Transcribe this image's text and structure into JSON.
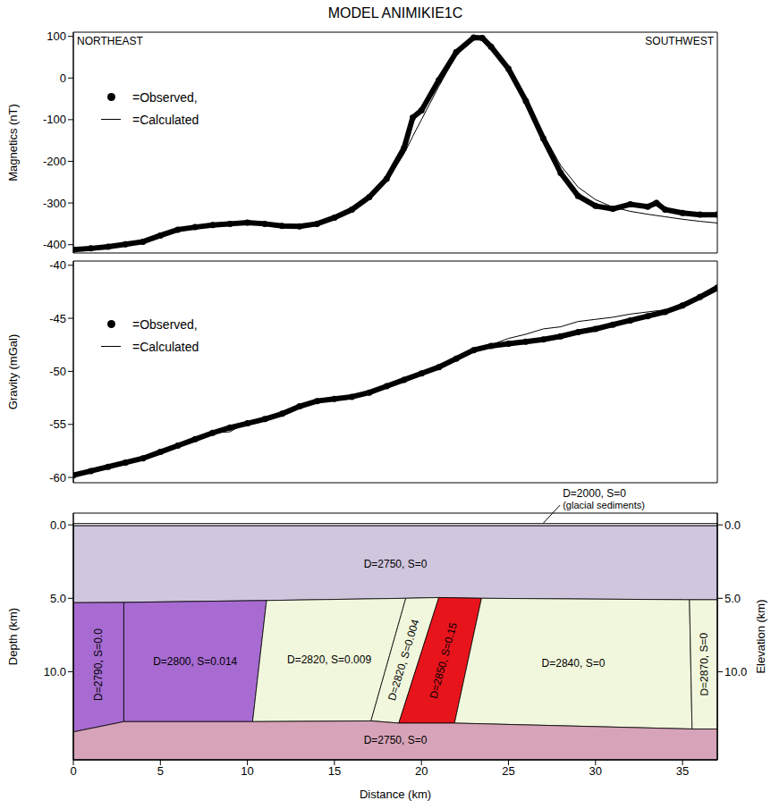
{
  "chart_data": [
    {
      "type": "line",
      "title": "MODEL ANIMIKIE1C",
      "annotations": [
        "NORTHEAST",
        "SOUTHWEST"
      ],
      "ylabel": "Magnetics (nT)",
      "x": [
        0,
        1,
        2,
        3,
        4,
        5,
        6,
        7,
        8,
        9,
        10,
        11,
        12,
        13,
        14,
        15,
        16,
        17,
        18,
        19,
        19.5,
        20,
        21,
        22,
        23,
        23.5,
        24,
        25,
        26,
        27,
        28,
        29,
        30,
        31,
        32,
        33,
        33.5,
        34,
        35,
        36,
        37
      ],
      "xlim": [
        0,
        37
      ],
      "ylim": [
        -420,
        110
      ],
      "yticks": [
        -400,
        -300,
        -200,
        -100,
        0,
        100
      ],
      "tick_labels": "y",
      "legend": "upper left",
      "series": [
        {
          "name": "=Observed,",
          "color": "#000000",
          "marker": "circle",
          "line_style": "solid",
          "values": [
            -412,
            -409,
            -405,
            -399,
            -393,
            -378,
            -364,
            -358,
            -353,
            -350,
            -347,
            -350,
            -355,
            -356,
            -350,
            -335,
            -316,
            -286,
            -242,
            -168,
            -95,
            -78,
            -5,
            62,
            97,
            96,
            75,
            22,
            -55,
            -145,
            -228,
            -283,
            -307,
            -314,
            -303,
            -309,
            -300,
            -316,
            -324,
            -328,
            -328
          ]
        },
        {
          "name": "=Calculated",
          "color": "#000000",
          "marker": "none",
          "line_style": "solid",
          "values": [
            -412,
            -409,
            -404,
            -398,
            -391,
            -378,
            -366,
            -359,
            -354,
            -350,
            -348,
            -349,
            -353,
            -355,
            -350,
            -336,
            -318,
            -290,
            -248,
            -182,
            -140,
            -100,
            -20,
            55,
            95,
            97,
            78,
            25,
            -50,
            -135,
            -210,
            -262,
            -292,
            -310,
            -320,
            -327,
            -330,
            -333,
            -339,
            -344,
            -348
          ]
        }
      ]
    },
    {
      "type": "line",
      "ylabel": "Gravity (mGal)",
      "x": [
        0,
        1,
        2,
        3,
        4,
        5,
        6,
        7,
        8,
        9,
        10,
        11,
        12,
        13,
        14,
        15,
        16,
        17,
        18,
        19,
        20,
        21,
        22,
        23,
        24,
        25,
        26,
        27,
        28,
        29,
        30,
        31,
        32,
        33,
        34,
        35,
        36,
        37
      ],
      "xlim": [
        0,
        37
      ],
      "ylim": [
        -60.5,
        -39.6
      ],
      "yticks": [
        -60,
        -55,
        -50,
        -45,
        -40
      ],
      "tick_labels": "y",
      "legend": "upper left",
      "series": [
        {
          "name": "=Observed,",
          "color": "#000000",
          "marker": "circle",
          "line_style": "solid",
          "values": [
            -59.8,
            -59.4,
            -59.0,
            -58.6,
            -58.2,
            -57.6,
            -57.0,
            -56.4,
            -55.8,
            -55.3,
            -54.9,
            -54.5,
            -54.0,
            -53.3,
            -52.8,
            -52.6,
            -52.4,
            -52.0,
            -51.4,
            -50.8,
            -50.2,
            -49.6,
            -48.8,
            -48.0,
            -47.6,
            -47.4,
            -47.2,
            -47.0,
            -46.7,
            -46.3,
            -46.0,
            -45.6,
            -45.2,
            -44.8,
            -44.4,
            -43.8,
            -43.0,
            -42.1
          ]
        },
        {
          "name": "=Calculated",
          "color": "#000000",
          "marker": "none",
          "line_style": "solid",
          "values": [
            -59.8,
            -59.4,
            -59.0,
            -58.6,
            -58.2,
            -57.6,
            -57.0,
            -56.4,
            -55.8,
            -55.7,
            -54.8,
            -54.5,
            -54.0,
            -53.2,
            -52.8,
            -52.6,
            -52.3,
            -52.0,
            -51.3,
            -50.8,
            -50.2,
            -49.5,
            -48.7,
            -47.9,
            -47.5,
            -46.9,
            -46.5,
            -46.0,
            -45.8,
            -45.3,
            -45.1,
            -44.9,
            -44.6,
            -44.4,
            -44.2,
            -43.7,
            -43.2,
            -42.4
          ]
        }
      ]
    },
    {
      "type": "section",
      "xlabel": "Distance (km)",
      "ylabel": "Depth (km)",
      "y2label": "Elevation (km)",
      "xlim": [
        0,
        37
      ],
      "xticks": [
        0,
        5,
        10,
        15,
        20,
        25,
        30,
        35
      ],
      "ylim": [
        -0.8,
        16
      ],
      "yticks": [
        {
          "value": 0,
          "label": "0.0"
        },
        {
          "value": 5,
          "label": "5.0"
        },
        {
          "value": 10,
          "label": "10.0"
        }
      ],
      "y2lim": [
        -0.8,
        16
      ],
      "y2ticks": [
        {
          "value": 0,
          "label": "0.0"
        },
        {
          "value": 5,
          "label": "5.0"
        },
        {
          "value": 10,
          "label": "10.0"
        }
      ],
      "bodies": [
        {
          "label": "D=2750, S=0",
          "color": "#d0c6de",
          "polygon": [
            [
              0,
              0.05
            ],
            [
              37,
              0.05
            ],
            [
              37,
              5.1
            ],
            [
              35.4,
              5.1
            ],
            [
              23.45,
              5.0
            ],
            [
              21.0,
              4.95
            ],
            [
              19.1,
              5.0
            ],
            [
              11.1,
              5.15
            ],
            [
              2.9,
              5.28
            ],
            [
              0,
              5.3
            ]
          ]
        },
        {
          "label": "D=2790, S=0.0",
          "color": "#a76bd1",
          "polygon": [
            [
              0,
              5.3
            ],
            [
              2.9,
              5.28
            ],
            [
              2.9,
              13.4
            ],
            [
              0,
              14.1
            ]
          ]
        },
        {
          "label": "D=2800, S=0.014",
          "color": "#a76bd1",
          "polygon": [
            [
              2.9,
              5.28
            ],
            [
              11.1,
              5.15
            ],
            [
              10.3,
              13.4
            ],
            [
              2.9,
              13.4
            ]
          ]
        },
        {
          "label": "D=2820, S=0.009",
          "color": "#f1f7dc",
          "polygon": [
            [
              11.1,
              5.15
            ],
            [
              19.1,
              5.0
            ],
            [
              17.1,
              13.35
            ],
            [
              10.3,
              13.4
            ]
          ]
        },
        {
          "label": "D=2820, S=0.004",
          "color": "#f1f7dc",
          "polygon": [
            [
              19.1,
              5.0
            ],
            [
              21.0,
              4.95
            ],
            [
              18.7,
              13.5
            ],
            [
              17.1,
              13.35
            ]
          ]
        },
        {
          "label": "D=2850, S=0.15",
          "color": "#e8141c",
          "polygon": [
            [
              21.0,
              4.95
            ],
            [
              23.45,
              5.0
            ],
            [
              21.9,
              13.5
            ],
            [
              18.7,
              13.5
            ]
          ]
        },
        {
          "label": "D=2840, S=0",
          "color": "#f1f7dc",
          "polygon": [
            [
              23.45,
              5.0
            ],
            [
              35.4,
              5.1
            ],
            [
              35.55,
              13.9
            ],
            [
              21.9,
              13.5
            ]
          ]
        },
        {
          "label": "D=2870, S=0",
          "color": "#f1f7dc",
          "polygon": [
            [
              35.4,
              5.1
            ],
            [
              37,
              5.1
            ],
            [
              37,
              13.9
            ],
            [
              35.55,
              13.9
            ]
          ]
        },
        {
          "label": "D=2750, S=0",
          "color": "#d6a3b8",
          "polygon": [
            [
              0,
              14.1
            ],
            [
              2.9,
              13.4
            ],
            [
              10.3,
              13.4
            ],
            [
              17.1,
              13.35
            ],
            [
              18.7,
              13.5
            ],
            [
              21.9,
              13.5
            ],
            [
              35.55,
              13.9
            ],
            [
              37,
              13.9
            ],
            [
              37,
              16
            ],
            [
              0,
              16
            ]
          ]
        },
        {
          "label": "D=2000, S=0",
          "sublabel": "(glacial sediments)",
          "color": "#d8d8d8",
          "polygon": [
            [
              0,
              -0.1
            ],
            [
              37,
              -0.1
            ],
            [
              37,
              0.05
            ],
            [
              0,
              0.05
            ]
          ]
        }
      ]
    }
  ]
}
